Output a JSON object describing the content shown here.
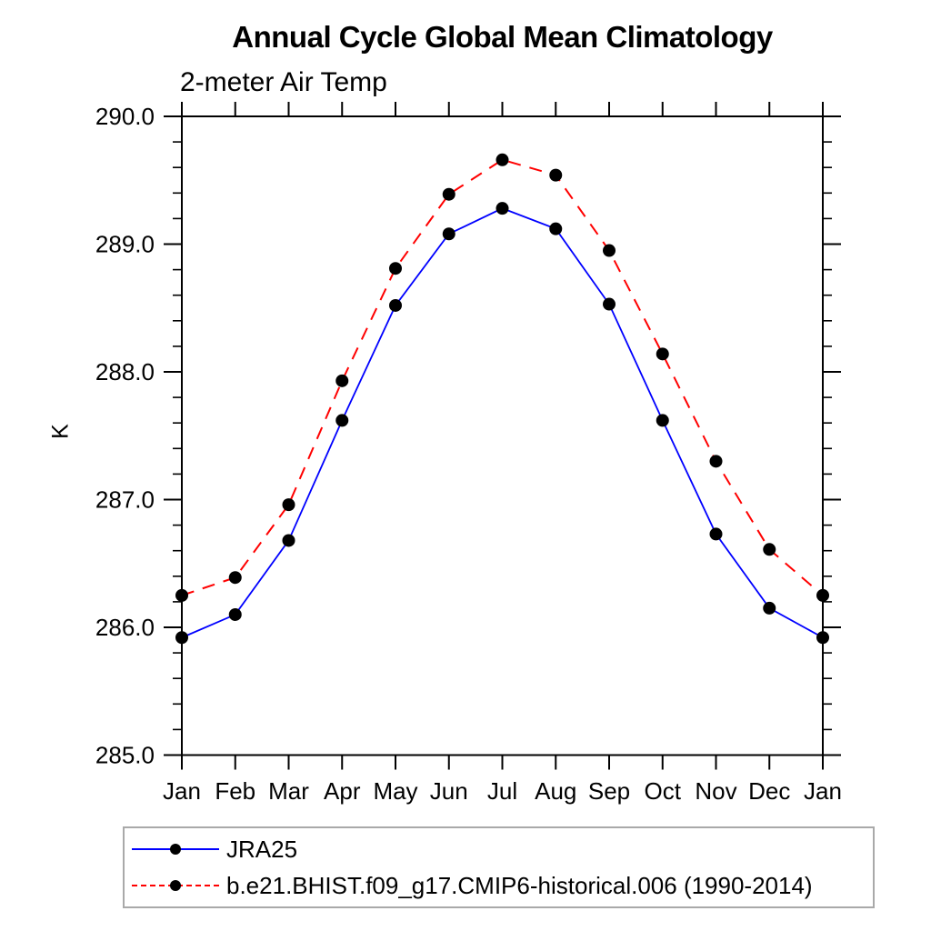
{
  "chart_data": {
    "type": "line",
    "title": "Annual Cycle Global Mean Climatology",
    "subtitle": "2-meter Air Temp",
    "ylabel": "K",
    "xlabel": "",
    "categories": [
      "Jan",
      "Feb",
      "Mar",
      "Apr",
      "May",
      "Jun",
      "Jul",
      "Aug",
      "Sep",
      "Oct",
      "Nov",
      "Dec",
      "Jan"
    ],
    "ylim": [
      285.0,
      290.0
    ],
    "ytick_labels": [
      "285.0",
      "286.0",
      "287.0",
      "288.0",
      "289.0",
      "290.0"
    ],
    "ytick_values": [
      285.0,
      286.0,
      287.0,
      288.0,
      289.0,
      290.0
    ],
    "y_minor_interval": 0.2,
    "grid": false,
    "legend_position": "bottom-left-box",
    "marker": {
      "shape": "circle",
      "color": "#000000"
    },
    "series": [
      {
        "name": "JRA25",
        "line_style": "solid",
        "color": "#0000ff",
        "values": [
          285.92,
          286.1,
          286.68,
          287.62,
          288.52,
          289.08,
          289.28,
          289.12,
          288.53,
          287.62,
          286.73,
          286.15,
          285.92
        ]
      },
      {
        "name": "b.e21.BHIST.f09_g17.CMIP6-historical.006 (1990-2014)",
        "line_style": "dashed",
        "color": "#ff0000",
        "values": [
          286.25,
          286.39,
          286.96,
          287.93,
          288.81,
          289.39,
          289.66,
          289.54,
          288.95,
          288.14,
          287.3,
          286.61,
          286.25
        ]
      }
    ]
  }
}
